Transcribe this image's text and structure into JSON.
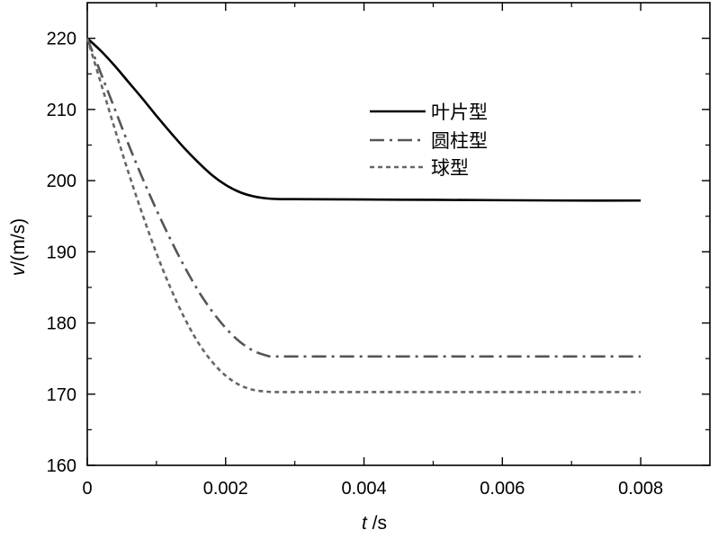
{
  "chart_data": {
    "type": "line",
    "xlabel_var": "t",
    "xlabel_unit": " /s",
    "ylabel_var": "v",
    "ylabel_unit": "/(m/s)",
    "xlim": [
      0,
      0.009
    ],
    "ylim": [
      160,
      225
    ],
    "xticks": [
      0,
      0.002,
      0.004,
      0.006,
      0.008
    ],
    "xtick_labels": [
      "0",
      "0.002",
      "0.004",
      "0.006",
      "0.008"
    ],
    "yticks": [
      160,
      170,
      180,
      190,
      200,
      210,
      220
    ],
    "ytick_labels": [
      "160",
      "170",
      "180",
      "190",
      "200",
      "210",
      "220"
    ],
    "grid": false,
    "legend_position": "upper-center",
    "series": [
      {
        "name": "叶片型",
        "style": "solid",
        "color": "#000000",
        "x": [
          0,
          0.0002,
          0.0004,
          0.0006,
          0.0008,
          0.001,
          0.0012,
          0.0014,
          0.0016,
          0.0018,
          0.002,
          0.0022,
          0.0024,
          0.0026,
          0.0028,
          0.003,
          0.004,
          0.005,
          0.006,
          0.007,
          0.008
        ],
        "values": [
          220,
          218.2,
          216.1,
          213.8,
          211.5,
          209.1,
          206.8,
          204.6,
          202.6,
          200.8,
          199.4,
          198.4,
          197.8,
          197.5,
          197.4,
          197.4,
          197.35,
          197.3,
          197.25,
          197.2,
          197.2
        ]
      },
      {
        "name": "圆柱型",
        "style": "dashdot",
        "color": "#555555",
        "x": [
          0,
          0.0002,
          0.0004,
          0.0006,
          0.0008,
          0.001,
          0.0012,
          0.0014,
          0.0016,
          0.0018,
          0.002,
          0.0022,
          0.0024,
          0.0026,
          0.0027,
          0.003,
          0.004,
          0.005,
          0.006,
          0.007,
          0.008
        ],
        "values": [
          220,
          215.0,
          210.0,
          205.0,
          200.3,
          195.9,
          191.8,
          188.0,
          184.6,
          181.7,
          179.3,
          177.4,
          176.1,
          175.4,
          175.3,
          175.3,
          175.3,
          175.3,
          175.3,
          175.3,
          175.3
        ]
      },
      {
        "name": "球型",
        "style": "dashed",
        "color": "#666666",
        "x": [
          0,
          0.0002,
          0.0004,
          0.0006,
          0.0008,
          0.001,
          0.0012,
          0.0014,
          0.0016,
          0.0018,
          0.002,
          0.0022,
          0.0024,
          0.0026,
          0.0027,
          0.003,
          0.004,
          0.005,
          0.006,
          0.007,
          0.008
        ],
        "values": [
          220,
          213.6,
          207.2,
          201.0,
          195.2,
          189.8,
          185.0,
          180.8,
          177.3,
          174.6,
          172.6,
          171.3,
          170.6,
          170.35,
          170.3,
          170.3,
          170.3,
          170.3,
          170.3,
          170.3,
          170.3
        ]
      }
    ]
  }
}
